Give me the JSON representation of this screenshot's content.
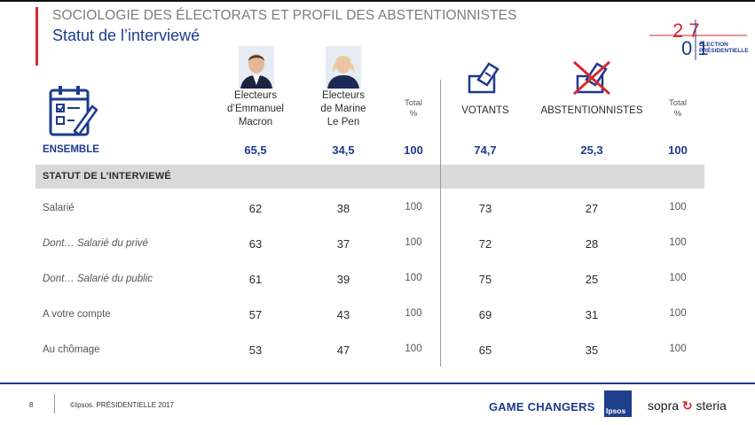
{
  "header": {
    "title": "SOCIOLOGIE DES ÉLECTORATS ET PROFIL DES ABSTENTIONNISTES",
    "subtitle": "Statut de l’interviewé",
    "logo": {
      "year_top": "2 7",
      "year_digits": "0 1",
      "line1": "ÉLECTION",
      "line2": "PRÉSIDENTIELLE"
    }
  },
  "columns": {
    "macron": [
      "Electeurs",
      "d’Emmanuel",
      "Macron"
    ],
    "lepen": [
      "Electeurs",
      "de Marine",
      "Le Pen"
    ],
    "total1": [
      "Total",
      "%"
    ],
    "votants": "VOTANTS",
    "abst": "ABSTENTIONNISTES",
    "total2": [
      "Total",
      "%"
    ]
  },
  "ensemble": {
    "label": "ENSEMBLE",
    "values": [
      "65,5",
      "34,5",
      "100",
      "74,7",
      "25,3",
      "100"
    ]
  },
  "section_label": "STATUT DE L’INTERVIEWÉ",
  "rows": [
    {
      "label": "Salarié",
      "italic": false,
      "values": [
        "62",
        "38",
        "100",
        "73",
        "27",
        "100"
      ]
    },
    {
      "label": "Dont… Salarié du privé",
      "italic": true,
      "values": [
        "63",
        "37",
        "100",
        "72",
        "28",
        "100"
      ]
    },
    {
      "label": "Dont… Salarié du public",
      "italic": true,
      "values": [
        "61",
        "39",
        "100",
        "75",
        "25",
        "100"
      ]
    },
    {
      "label": "A votre compte",
      "italic": false,
      "values": [
        "57",
        "43",
        "100",
        "69",
        "31",
        "100"
      ]
    },
    {
      "label": "Au chômage",
      "italic": false,
      "values": [
        "53",
        "47",
        "100",
        "65",
        "35",
        "100"
      ]
    }
  ],
  "footer": {
    "page": "8",
    "copyright": "©Ipsos. PRÉSIDENTIELLE 2017",
    "slogan": "GAME CHANGERS",
    "ipsos": "Ipsos",
    "sopra": "sopra",
    "steria": "steria"
  },
  "colors": {
    "accent_blue": "#1e3b8c",
    "accent_red": "#d42a36",
    "band_grey": "#d9d9d9"
  },
  "icons": [
    "calendar-checklist-icon",
    "ballot-box-icon",
    "ballot-box-crossed-icon",
    "macron-portrait",
    "lepen-portrait"
  ]
}
